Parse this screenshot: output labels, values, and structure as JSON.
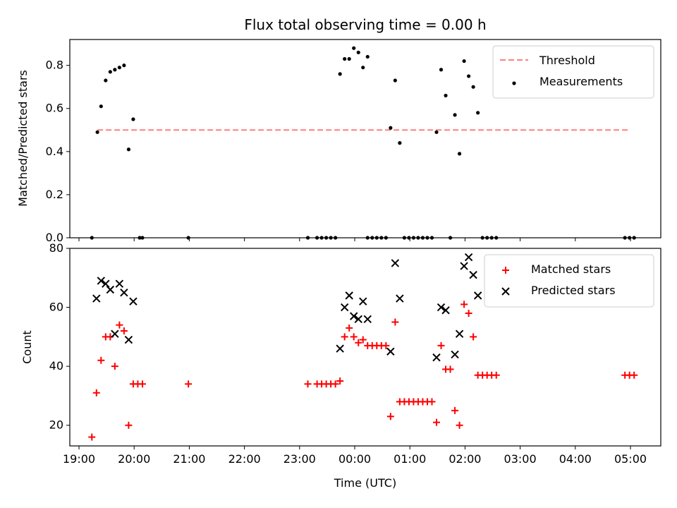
{
  "chart_data": [
    {
      "type": "scatter",
      "title": "Flux total observing time = 0.00 h",
      "xlabel": "",
      "ylabel": "Matched/Predicted stars",
      "xlim": [
        "18:50",
        "05:33"
      ],
      "ylim": [
        0,
        0.92
      ],
      "x_ticks": [
        "19:00",
        "20:00",
        "21:00",
        "22:00",
        "23:00",
        "00:00",
        "01:00",
        "02:00",
        "03:00",
        "04:00",
        "05:00"
      ],
      "y_ticks": [
        "0.0",
        "0.2",
        "0.4",
        "0.6",
        "0.8"
      ],
      "legend_position": "top-right",
      "series": [
        {
          "name": "Threshold",
          "style": "dashed-line",
          "color": "#ff7f7f",
          "points": [
            [
              "19:20",
              0.5
            ],
            [
              "05:00",
              0.5
            ]
          ]
        },
        {
          "name": "Measurements",
          "style": "dot",
          "color": "#000000",
          "points": [
            [
              "19:14",
              0.0
            ],
            [
              "19:20",
              0.49
            ],
            [
              "19:24",
              0.61
            ],
            [
              "19:29",
              0.73
            ],
            [
              "19:34",
              0.77
            ],
            [
              "19:39",
              0.78
            ],
            [
              "19:44",
              0.79
            ],
            [
              "19:49",
              0.8
            ],
            [
              "19:54",
              0.41
            ],
            [
              "19:59",
              0.55
            ],
            [
              "20:06",
              0.0
            ],
            [
              "20:09",
              0.0
            ],
            [
              "20:59",
              0.0
            ],
            [
              "23:09",
              0.0
            ],
            [
              "23:19",
              0.0
            ],
            [
              "23:24",
              0.0
            ],
            [
              "23:29",
              0.0
            ],
            [
              "23:34",
              0.0
            ],
            [
              "23:39",
              0.0
            ],
            [
              "23:44",
              0.76
            ],
            [
              "23:49",
              0.83
            ],
            [
              "23:54",
              0.83
            ],
            [
              "23:59",
              0.88
            ],
            [
              "00:04",
              0.86
            ],
            [
              "00:09",
              0.79
            ],
            [
              "00:14",
              0.84
            ],
            [
              "00:14",
              0.0
            ],
            [
              "00:19",
              0.0
            ],
            [
              "00:24",
              0.0
            ],
            [
              "00:29",
              0.0
            ],
            [
              "00:34",
              0.0
            ],
            [
              "00:39",
              0.51
            ],
            [
              "00:44",
              0.73
            ],
            [
              "00:49",
              0.44
            ],
            [
              "00:54",
              0.0
            ],
            [
              "00:59",
              0.0
            ],
            [
              "01:04",
              0.0
            ],
            [
              "01:09",
              0.0
            ],
            [
              "01:14",
              0.0
            ],
            [
              "01:19",
              0.0
            ],
            [
              "01:24",
              0.0
            ],
            [
              "01:29",
              0.49
            ],
            [
              "01:34",
              0.78
            ],
            [
              "01:39",
              0.66
            ],
            [
              "01:44",
              0.0
            ],
            [
              "01:49",
              0.57
            ],
            [
              "01:54",
              0.39
            ],
            [
              "01:59",
              0.82
            ],
            [
              "02:04",
              0.75
            ],
            [
              "02:09",
              0.7
            ],
            [
              "02:14",
              0.58
            ],
            [
              "02:19",
              0.0
            ],
            [
              "02:24",
              0.0
            ],
            [
              "02:29",
              0.0
            ],
            [
              "02:34",
              0.0
            ],
            [
              "04:54",
              0.0
            ],
            [
              "04:59",
              0.0
            ],
            [
              "05:04",
              0.0
            ]
          ]
        }
      ]
    },
    {
      "type": "scatter",
      "title": "",
      "xlabel": "Time (UTC)",
      "ylabel": "Count",
      "xlim": [
        "18:50",
        "05:33"
      ],
      "ylim": [
        13,
        80
      ],
      "x_ticks": [
        "19:00",
        "20:00",
        "21:00",
        "22:00",
        "23:00",
        "00:00",
        "01:00",
        "02:00",
        "03:00",
        "04:00",
        "05:00"
      ],
      "y_ticks": [
        "20",
        "40",
        "60",
        "80"
      ],
      "legend_position": "top-right",
      "series": [
        {
          "name": "Matched stars",
          "style": "plus",
          "color": "#ff0000",
          "points": [
            [
              "19:14",
              16
            ],
            [
              "19:19",
              31
            ],
            [
              "19:24",
              42
            ],
            [
              "19:29",
              50
            ],
            [
              "19:34",
              50
            ],
            [
              "19:39",
              40
            ],
            [
              "19:44",
              54
            ],
            [
              "19:49",
              52
            ],
            [
              "19:54",
              20
            ],
            [
              "19:59",
              34
            ],
            [
              "20:04",
              34
            ],
            [
              "20:09",
              34
            ],
            [
              "20:59",
              34
            ],
            [
              "23:09",
              34
            ],
            [
              "23:19",
              34
            ],
            [
              "23:24",
              34
            ],
            [
              "23:29",
              34
            ],
            [
              "23:34",
              34
            ],
            [
              "23:39",
              34
            ],
            [
              "23:44",
              35
            ],
            [
              "23:49",
              50
            ],
            [
              "23:54",
              53
            ],
            [
              "23:59",
              50
            ],
            [
              "00:04",
              48
            ],
            [
              "00:09",
              49
            ],
            [
              "00:14",
              47
            ],
            [
              "00:19",
              47
            ],
            [
              "00:24",
              47
            ],
            [
              "00:29",
              47
            ],
            [
              "00:34",
              47
            ],
            [
              "00:39",
              23
            ],
            [
              "00:44",
              55
            ],
            [
              "00:49",
              28
            ],
            [
              "00:54",
              28
            ],
            [
              "00:59",
              28
            ],
            [
              "01:04",
              28
            ],
            [
              "01:09",
              28
            ],
            [
              "01:14",
              28
            ],
            [
              "01:19",
              28
            ],
            [
              "01:24",
              28
            ],
            [
              "01:29",
              21
            ],
            [
              "01:34",
              47
            ],
            [
              "01:39",
              39
            ],
            [
              "01:44",
              39
            ],
            [
              "01:49",
              25
            ],
            [
              "01:54",
              20
            ],
            [
              "01:59",
              61
            ],
            [
              "02:04",
              58
            ],
            [
              "02:09",
              50
            ],
            [
              "02:14",
              37
            ],
            [
              "02:19",
              37
            ],
            [
              "02:24",
              37
            ],
            [
              "02:29",
              37
            ],
            [
              "02:34",
              37
            ],
            [
              "04:54",
              37
            ],
            [
              "04:59",
              37
            ],
            [
              "05:04",
              37
            ]
          ]
        },
        {
          "name": "Predicted stars",
          "style": "x",
          "color": "#000000",
          "points": [
            [
              "19:19",
              63
            ],
            [
              "19:24",
              69
            ],
            [
              "19:29",
              68
            ],
            [
              "19:34",
              66
            ],
            [
              "19:39",
              51
            ],
            [
              "19:44",
              68
            ],
            [
              "19:49",
              65
            ],
            [
              "19:54",
              49
            ],
            [
              "19:59",
              62
            ],
            [
              "23:44",
              46
            ],
            [
              "23:49",
              60
            ],
            [
              "23:54",
              64
            ],
            [
              "23:59",
              57
            ],
            [
              "00:04",
              56
            ],
            [
              "00:09",
              62
            ],
            [
              "00:14",
              56
            ],
            [
              "00:39",
              45
            ],
            [
              "00:44",
              75
            ],
            [
              "00:49",
              63
            ],
            [
              "01:29",
              43
            ],
            [
              "01:34",
              60
            ],
            [
              "01:39",
              59
            ],
            [
              "01:49",
              44
            ],
            [
              "01:54",
              51
            ],
            [
              "01:59",
              74
            ],
            [
              "02:04",
              77
            ],
            [
              "02:09",
              71
            ],
            [
              "02:14",
              64
            ]
          ]
        }
      ]
    }
  ]
}
